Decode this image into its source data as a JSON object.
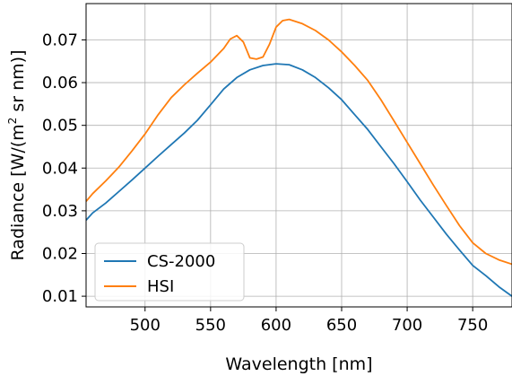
{
  "chart_data": {
    "type": "line",
    "xlabel": "Wavelength [nm]",
    "ylabel_prefix": "Radiance [W/(m",
    "ylabel_sup": "2",
    "ylabel_suffix": " sr nm)]",
    "xlim": [
      455,
      780
    ],
    "ylim": [
      0.0075,
      0.0785
    ],
    "xticks": [
      500,
      550,
      600,
      650,
      700,
      750
    ],
    "xtick_labels": [
      "500",
      "550",
      "600",
      "650",
      "700",
      "750"
    ],
    "yticks": [
      0.01,
      0.02,
      0.03,
      0.04,
      0.05,
      0.06,
      0.07
    ],
    "ytick_labels": [
      "0.01",
      "0.02",
      "0.03",
      "0.04",
      "0.05",
      "0.06",
      "0.07"
    ],
    "grid": true,
    "legend_position": "lower-left",
    "series": [
      {
        "name": "CS-2000",
        "color": "#1f77b4",
        "x": [
          455,
          460,
          470,
          480,
          490,
          500,
          510,
          520,
          530,
          540,
          550,
          560,
          570,
          580,
          590,
          600,
          605,
          610,
          620,
          630,
          640,
          650,
          660,
          670,
          680,
          690,
          700,
          710,
          720,
          730,
          740,
          750,
          760,
          770,
          780
        ],
        "y": [
          0.0278,
          0.0295,
          0.0318,
          0.0345,
          0.0372,
          0.04,
          0.0428,
          0.0455,
          0.0482,
          0.0512,
          0.0548,
          0.0585,
          0.0612,
          0.063,
          0.064,
          0.0644,
          0.0643,
          0.0642,
          0.063,
          0.0612,
          0.0588,
          0.056,
          0.0525,
          0.049,
          0.045,
          0.041,
          0.0368,
          0.0325,
          0.0285,
          0.0245,
          0.0208,
          0.0172,
          0.0148,
          0.0122,
          0.01
        ]
      },
      {
        "name": "HSI",
        "color": "#ff7f0e",
        "x": [
          455,
          460,
          470,
          480,
          490,
          500,
          510,
          520,
          530,
          540,
          550,
          560,
          565,
          570,
          575,
          580,
          585,
          590,
          595,
          600,
          605,
          610,
          620,
          630,
          640,
          650,
          660,
          670,
          680,
          690,
          700,
          710,
          720,
          730,
          740,
          750,
          760,
          770,
          780
        ],
        "y": [
          0.0322,
          0.034,
          0.037,
          0.0402,
          0.044,
          0.048,
          0.0525,
          0.0565,
          0.0595,
          0.0622,
          0.0648,
          0.068,
          0.0702,
          0.071,
          0.0695,
          0.0658,
          0.0655,
          0.066,
          0.069,
          0.073,
          0.0745,
          0.0748,
          0.0738,
          0.0722,
          0.07,
          0.0672,
          0.064,
          0.0605,
          0.056,
          0.051,
          0.046,
          0.041,
          0.036,
          0.0312,
          0.0265,
          0.0225,
          0.02,
          0.0185,
          0.0175
        ]
      }
    ]
  }
}
